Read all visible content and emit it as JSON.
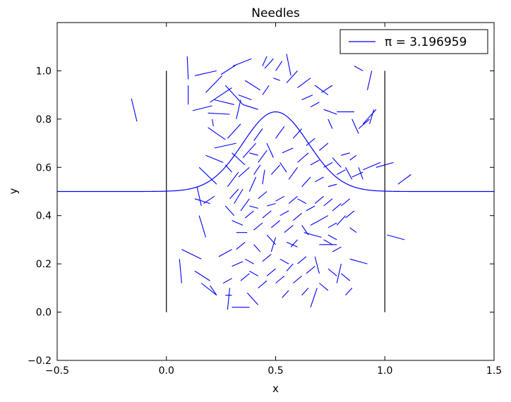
{
  "chart_data": {
    "type": "line",
    "title": "Needles",
    "xlabel": "x",
    "ylabel": "y",
    "xlim": [
      -0.5,
      1.5
    ],
    "ylim": [
      -0.2,
      1.2
    ],
    "xticks": [
      -0.5,
      0.0,
      0.5,
      1.0,
      1.5
    ],
    "xtick_labels": [
      "−0.5",
      "0.0",
      "0.5",
      "1.0",
      "1.5"
    ],
    "yticks": [
      -0.2,
      0.0,
      0.2,
      0.4,
      0.6,
      0.8,
      1.0
    ],
    "ytick_labels": [
      "−0.2",
      "0.0",
      "0.2",
      "0.4",
      "0.6",
      "0.8",
      "1.0"
    ],
    "grid": false,
    "legend": {
      "position": "top-right",
      "entries": [
        "π = 3.196959"
      ]
    },
    "colors": {
      "needles": "#0000ff",
      "boundaries": "#000000",
      "curve": "#0000ff"
    },
    "boundary_lines": [
      {
        "x": 0.0,
        "y": [
          0.0,
          1.0
        ]
      },
      {
        "x": 1.0,
        "y": [
          0.0,
          1.0
        ]
      }
    ],
    "curve": {
      "description_formula": "y = 0.5 + 0.33*exp(-(x-0.5)^2/0.045)",
      "amplitude": 0.33,
      "center": 0.5,
      "baseline": 0.5,
      "width_param": 0.045
    },
    "needles": [
      [
        -0.16,
        0.885,
        -0.135,
        0.79
      ],
      [
        0.095,
        1.06,
        0.1,
        0.965
      ],
      [
        0.1,
        0.94,
        0.1,
        0.86
      ],
      [
        0.13,
        0.98,
        0.23,
        1.0
      ],
      [
        0.19,
        0.765,
        0.27,
        0.715
      ],
      [
        0.12,
        0.835,
        0.21,
        0.855
      ],
      [
        0.18,
        0.91,
        0.255,
        0.98
      ],
      [
        0.2,
        0.87,
        0.3,
        0.93
      ],
      [
        0.19,
        0.825,
        0.29,
        0.82
      ],
      [
        0.21,
        0.8,
        0.215,
        0.77
      ],
      [
        0.25,
        0.985,
        0.32,
        1.025
      ],
      [
        0.27,
        0.94,
        0.35,
        0.86
      ],
      [
        0.22,
        0.88,
        0.31,
        0.86
      ],
      [
        0.28,
        0.72,
        0.34,
        0.78
      ],
      [
        0.32,
        0.8,
        0.34,
        0.88
      ],
      [
        0.305,
        1.02,
        0.39,
        1.05
      ],
      [
        0.33,
        0.9,
        0.39,
        0.88
      ],
      [
        0.36,
        0.96,
        0.43,
        0.92
      ],
      [
        0.35,
        0.86,
        0.42,
        0.84
      ],
      [
        0.44,
        0.9,
        0.47,
        0.94
      ],
      [
        0.45,
        1.01,
        0.49,
        1.05
      ],
      [
        0.5,
        1.0,
        0.53,
        1.04
      ],
      [
        0.55,
        0.95,
        0.6,
        1.0
      ],
      [
        0.6,
        0.93,
        0.66,
        0.97
      ],
      [
        0.62,
        0.88,
        0.67,
        0.9
      ],
      [
        0.66,
        0.85,
        0.7,
        0.87
      ],
      [
        0.68,
        0.94,
        0.74,
        0.9
      ],
      [
        0.71,
        0.91,
        0.76,
        0.94
      ],
      [
        0.72,
        0.84,
        0.78,
        0.82
      ],
      [
        0.74,
        0.8,
        0.76,
        0.76
      ],
      [
        0.78,
        0.83,
        0.86,
        0.83
      ],
      [
        0.85,
        0.8,
        0.88,
        0.74
      ],
      [
        0.88,
        0.76,
        0.93,
        0.8
      ],
      [
        0.9,
        0.78,
        0.96,
        0.84
      ],
      [
        0.86,
        1.02,
        0.9,
        1.0
      ],
      [
        0.92,
        0.92,
        0.94,
        1.0
      ],
      [
        0.93,
        0.78,
        0.95,
        0.84
      ],
      [
        0.55,
        1.07,
        0.57,
        0.98
      ],
      [
        0.49,
        0.97,
        0.52,
        0.96
      ],
      [
        0.44,
        1.02,
        0.46,
        1.06
      ],
      [
        0.15,
        0.6,
        0.23,
        0.53
      ],
      [
        0.18,
        0.65,
        0.26,
        0.62
      ],
      [
        0.22,
        0.68,
        0.32,
        0.7
      ],
      [
        0.27,
        0.61,
        0.3,
        0.58
      ],
      [
        0.3,
        0.66,
        0.36,
        0.61
      ],
      [
        0.28,
        0.52,
        0.33,
        0.58
      ],
      [
        0.31,
        0.45,
        0.35,
        0.51
      ],
      [
        0.33,
        0.56,
        0.38,
        0.6
      ],
      [
        0.35,
        0.64,
        0.41,
        0.7
      ],
      [
        0.38,
        0.5,
        0.41,
        0.56
      ],
      [
        0.4,
        0.57,
        0.43,
        0.61
      ],
      [
        0.38,
        0.66,
        0.42,
        0.65
      ],
      [
        0.4,
        0.71,
        0.44,
        0.76
      ],
      [
        0.42,
        0.62,
        0.46,
        0.67
      ],
      [
        0.44,
        0.53,
        0.45,
        0.59
      ],
      [
        0.46,
        0.7,
        0.49,
        0.64
      ],
      [
        0.48,
        0.57,
        0.52,
        0.61
      ],
      [
        0.5,
        0.72,
        0.54,
        0.77
      ],
      [
        0.52,
        0.62,
        0.55,
        0.58
      ],
      [
        0.53,
        0.66,
        0.58,
        0.68
      ],
      [
        0.56,
        0.55,
        0.6,
        0.6
      ],
      [
        0.58,
        0.72,
        0.62,
        0.76
      ],
      [
        0.6,
        0.62,
        0.65,
        0.66
      ],
      [
        0.62,
        0.52,
        0.66,
        0.56
      ],
      [
        0.64,
        0.69,
        0.68,
        0.72
      ],
      [
        0.66,
        0.61,
        0.7,
        0.63
      ],
      [
        0.68,
        0.54,
        0.72,
        0.56
      ],
      [
        0.7,
        0.67,
        0.74,
        0.7
      ],
      [
        0.72,
        0.6,
        0.76,
        0.62
      ],
      [
        0.74,
        0.52,
        0.78,
        0.53
      ],
      [
        0.76,
        0.64,
        0.8,
        0.6
      ],
      [
        0.78,
        0.57,
        0.82,
        0.59
      ],
      [
        0.8,
        0.65,
        0.84,
        0.66
      ],
      [
        0.82,
        0.6,
        0.85,
        0.55
      ],
      [
        0.84,
        0.63,
        0.87,
        0.65
      ],
      [
        0.85,
        0.56,
        0.9,
        0.58
      ],
      [
        0.88,
        0.6,
        0.9,
        0.55
      ],
      [
        0.9,
        0.59,
        0.98,
        0.62
      ],
      [
        0.96,
        0.6,
        1.04,
        0.62
      ],
      [
        1.06,
        0.53,
        1.12,
        0.57
      ],
      [
        0.13,
        0.47,
        0.2,
        0.45
      ],
      [
        0.14,
        0.52,
        0.16,
        0.44
      ],
      [
        0.17,
        0.45,
        0.22,
        0.48
      ],
      [
        0.15,
        0.4,
        0.18,
        0.31
      ],
      [
        0.27,
        0.44,
        0.31,
        0.4
      ],
      [
        0.29,
        0.47,
        0.33,
        0.51
      ],
      [
        0.3,
        0.38,
        0.35,
        0.36
      ],
      [
        0.32,
        0.33,
        0.37,
        0.33
      ],
      [
        0.34,
        0.42,
        0.38,
        0.47
      ],
      [
        0.36,
        0.39,
        0.4,
        0.42
      ],
      [
        0.38,
        0.44,
        0.42,
        0.43
      ],
      [
        0.4,
        0.34,
        0.44,
        0.37
      ],
      [
        0.42,
        0.47,
        0.46,
        0.5
      ],
      [
        0.44,
        0.39,
        0.48,
        0.42
      ],
      [
        0.46,
        0.44,
        0.5,
        0.45
      ],
      [
        0.48,
        0.35,
        0.52,
        0.38
      ],
      [
        0.5,
        0.46,
        0.54,
        0.48
      ],
      [
        0.52,
        0.4,
        0.56,
        0.42
      ],
      [
        0.54,
        0.33,
        0.58,
        0.36
      ],
      [
        0.56,
        0.45,
        0.6,
        0.48
      ],
      [
        0.58,
        0.38,
        0.62,
        0.41
      ],
      [
        0.6,
        0.47,
        0.64,
        0.45
      ],
      [
        0.62,
        0.36,
        0.65,
        0.32
      ],
      [
        0.64,
        0.42,
        0.68,
        0.44
      ],
      [
        0.66,
        0.36,
        0.7,
        0.38
      ],
      [
        0.68,
        0.45,
        0.72,
        0.48
      ],
      [
        0.7,
        0.38,
        0.74,
        0.4
      ],
      [
        0.72,
        0.44,
        0.76,
        0.47
      ],
      [
        0.74,
        0.35,
        0.78,
        0.37
      ],
      [
        0.76,
        0.42,
        0.8,
        0.45
      ],
      [
        0.78,
        0.36,
        0.82,
        0.4
      ],
      [
        0.8,
        0.44,
        0.84,
        0.47
      ],
      [
        0.82,
        0.39,
        0.86,
        0.42
      ],
      [
        0.84,
        0.35,
        0.87,
        0.33
      ],
      [
        1.01,
        0.32,
        1.09,
        0.3
      ],
      [
        0.07,
        0.26,
        0.16,
        0.22
      ],
      [
        0.13,
        0.17,
        0.2,
        0.13
      ],
      [
        0.16,
        0.12,
        0.23,
        0.07
      ],
      [
        0.2,
        0.11,
        0.23,
        0.07
      ],
      [
        0.24,
        0.23,
        0.3,
        0.26
      ],
      [
        0.26,
        0.12,
        0.3,
        0.14
      ],
      [
        0.27,
        0.07,
        0.3,
        0.07
      ],
      [
        0.28,
        0.01,
        0.29,
        0.1
      ],
      [
        0.3,
        0.02,
        0.38,
        0.02
      ],
      [
        0.3,
        0.19,
        0.35,
        0.21
      ],
      [
        0.32,
        0.26,
        0.36,
        0.29
      ],
      [
        0.34,
        0.13,
        0.38,
        0.16
      ],
      [
        0.36,
        0.22,
        0.4,
        0.2
      ],
      [
        0.37,
        0.08,
        0.42,
        0.03
      ],
      [
        0.38,
        0.17,
        0.42,
        0.15
      ],
      [
        0.4,
        0.28,
        0.43,
        0.25
      ],
      [
        0.42,
        0.1,
        0.46,
        0.13
      ],
      [
        0.44,
        0.21,
        0.48,
        0.24
      ],
      [
        0.46,
        0.15,
        0.5,
        0.18
      ],
      [
        0.48,
        0.25,
        0.5,
        0.31
      ],
      [
        0.5,
        0.12,
        0.54,
        0.15
      ],
      [
        0.52,
        0.22,
        0.56,
        0.2
      ],
      [
        0.53,
        0.06,
        0.56,
        0.09
      ],
      [
        0.55,
        0.17,
        0.58,
        0.2
      ],
      [
        0.57,
        0.27,
        0.6,
        0.3
      ],
      [
        0.58,
        0.12,
        0.62,
        0.15
      ],
      [
        0.6,
        0.2,
        0.64,
        0.23
      ],
      [
        0.62,
        0.07,
        0.65,
        0.1
      ],
      [
        0.64,
        0.16,
        0.68,
        0.19
      ],
      [
        0.66,
        0.02,
        0.69,
        0.1
      ],
      [
        0.68,
        0.23,
        0.7,
        0.16
      ],
      [
        0.7,
        0.12,
        0.74,
        0.09
      ],
      [
        0.72,
        0.3,
        0.76,
        0.28
      ],
      [
        0.74,
        0.18,
        0.78,
        0.15
      ],
      [
        0.76,
        0.25,
        0.8,
        0.27
      ],
      [
        0.78,
        0.12,
        0.8,
        0.2
      ],
      [
        0.8,
        0.16,
        0.84,
        0.13
      ],
      [
        0.82,
        0.07,
        0.85,
        0.1
      ],
      [
        0.84,
        0.22,
        0.92,
        0.2
      ],
      [
        0.46,
        0.32,
        0.5,
        0.28
      ],
      [
        0.63,
        0.33,
        0.71,
        0.31
      ],
      [
        0.7,
        0.28,
        0.78,
        0.28
      ],
      [
        0.74,
        0.32,
        0.78,
        0.3
      ],
      [
        0.06,
        0.22,
        0.07,
        0.12
      ],
      [
        0.55,
        0.29,
        0.6,
        0.27
      ]
    ]
  }
}
